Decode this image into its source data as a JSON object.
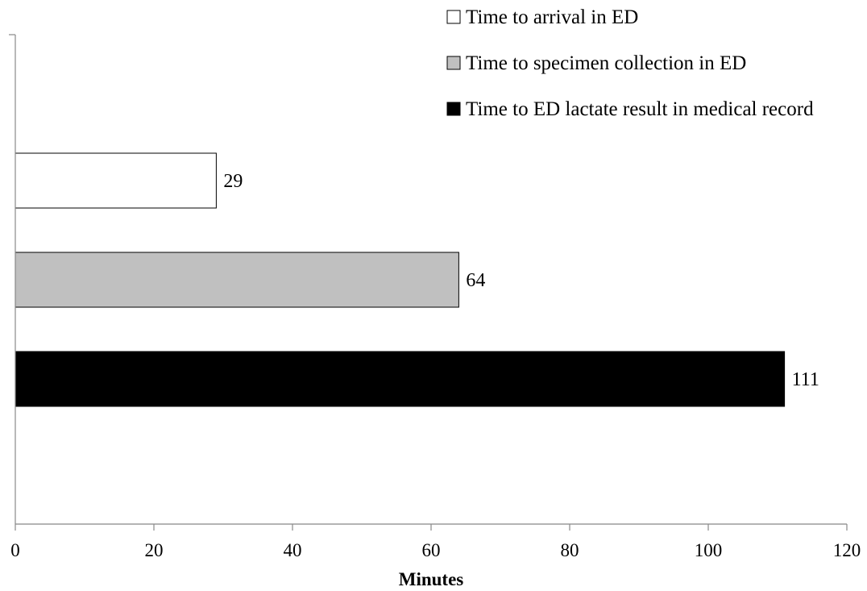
{
  "chart_data": {
    "type": "bar",
    "orientation": "horizontal",
    "categories": [
      "Time to arrival in ED",
      "Time to specimen collection in ED",
      "Time to ED lactate result in medical record"
    ],
    "values": [
      29,
      64,
      111
    ],
    "colors": [
      "#ffffff",
      "#c0c0c0",
      "#000000"
    ],
    "data_labels": [
      "29",
      "64",
      "111"
    ],
    "xlabel": "Minutes",
    "xlim": [
      0,
      120
    ],
    "xticks": [
      "0",
      "20",
      "40",
      "60",
      "80",
      "100",
      "120"
    ],
    "grid": false,
    "legend_position": "top-right"
  }
}
